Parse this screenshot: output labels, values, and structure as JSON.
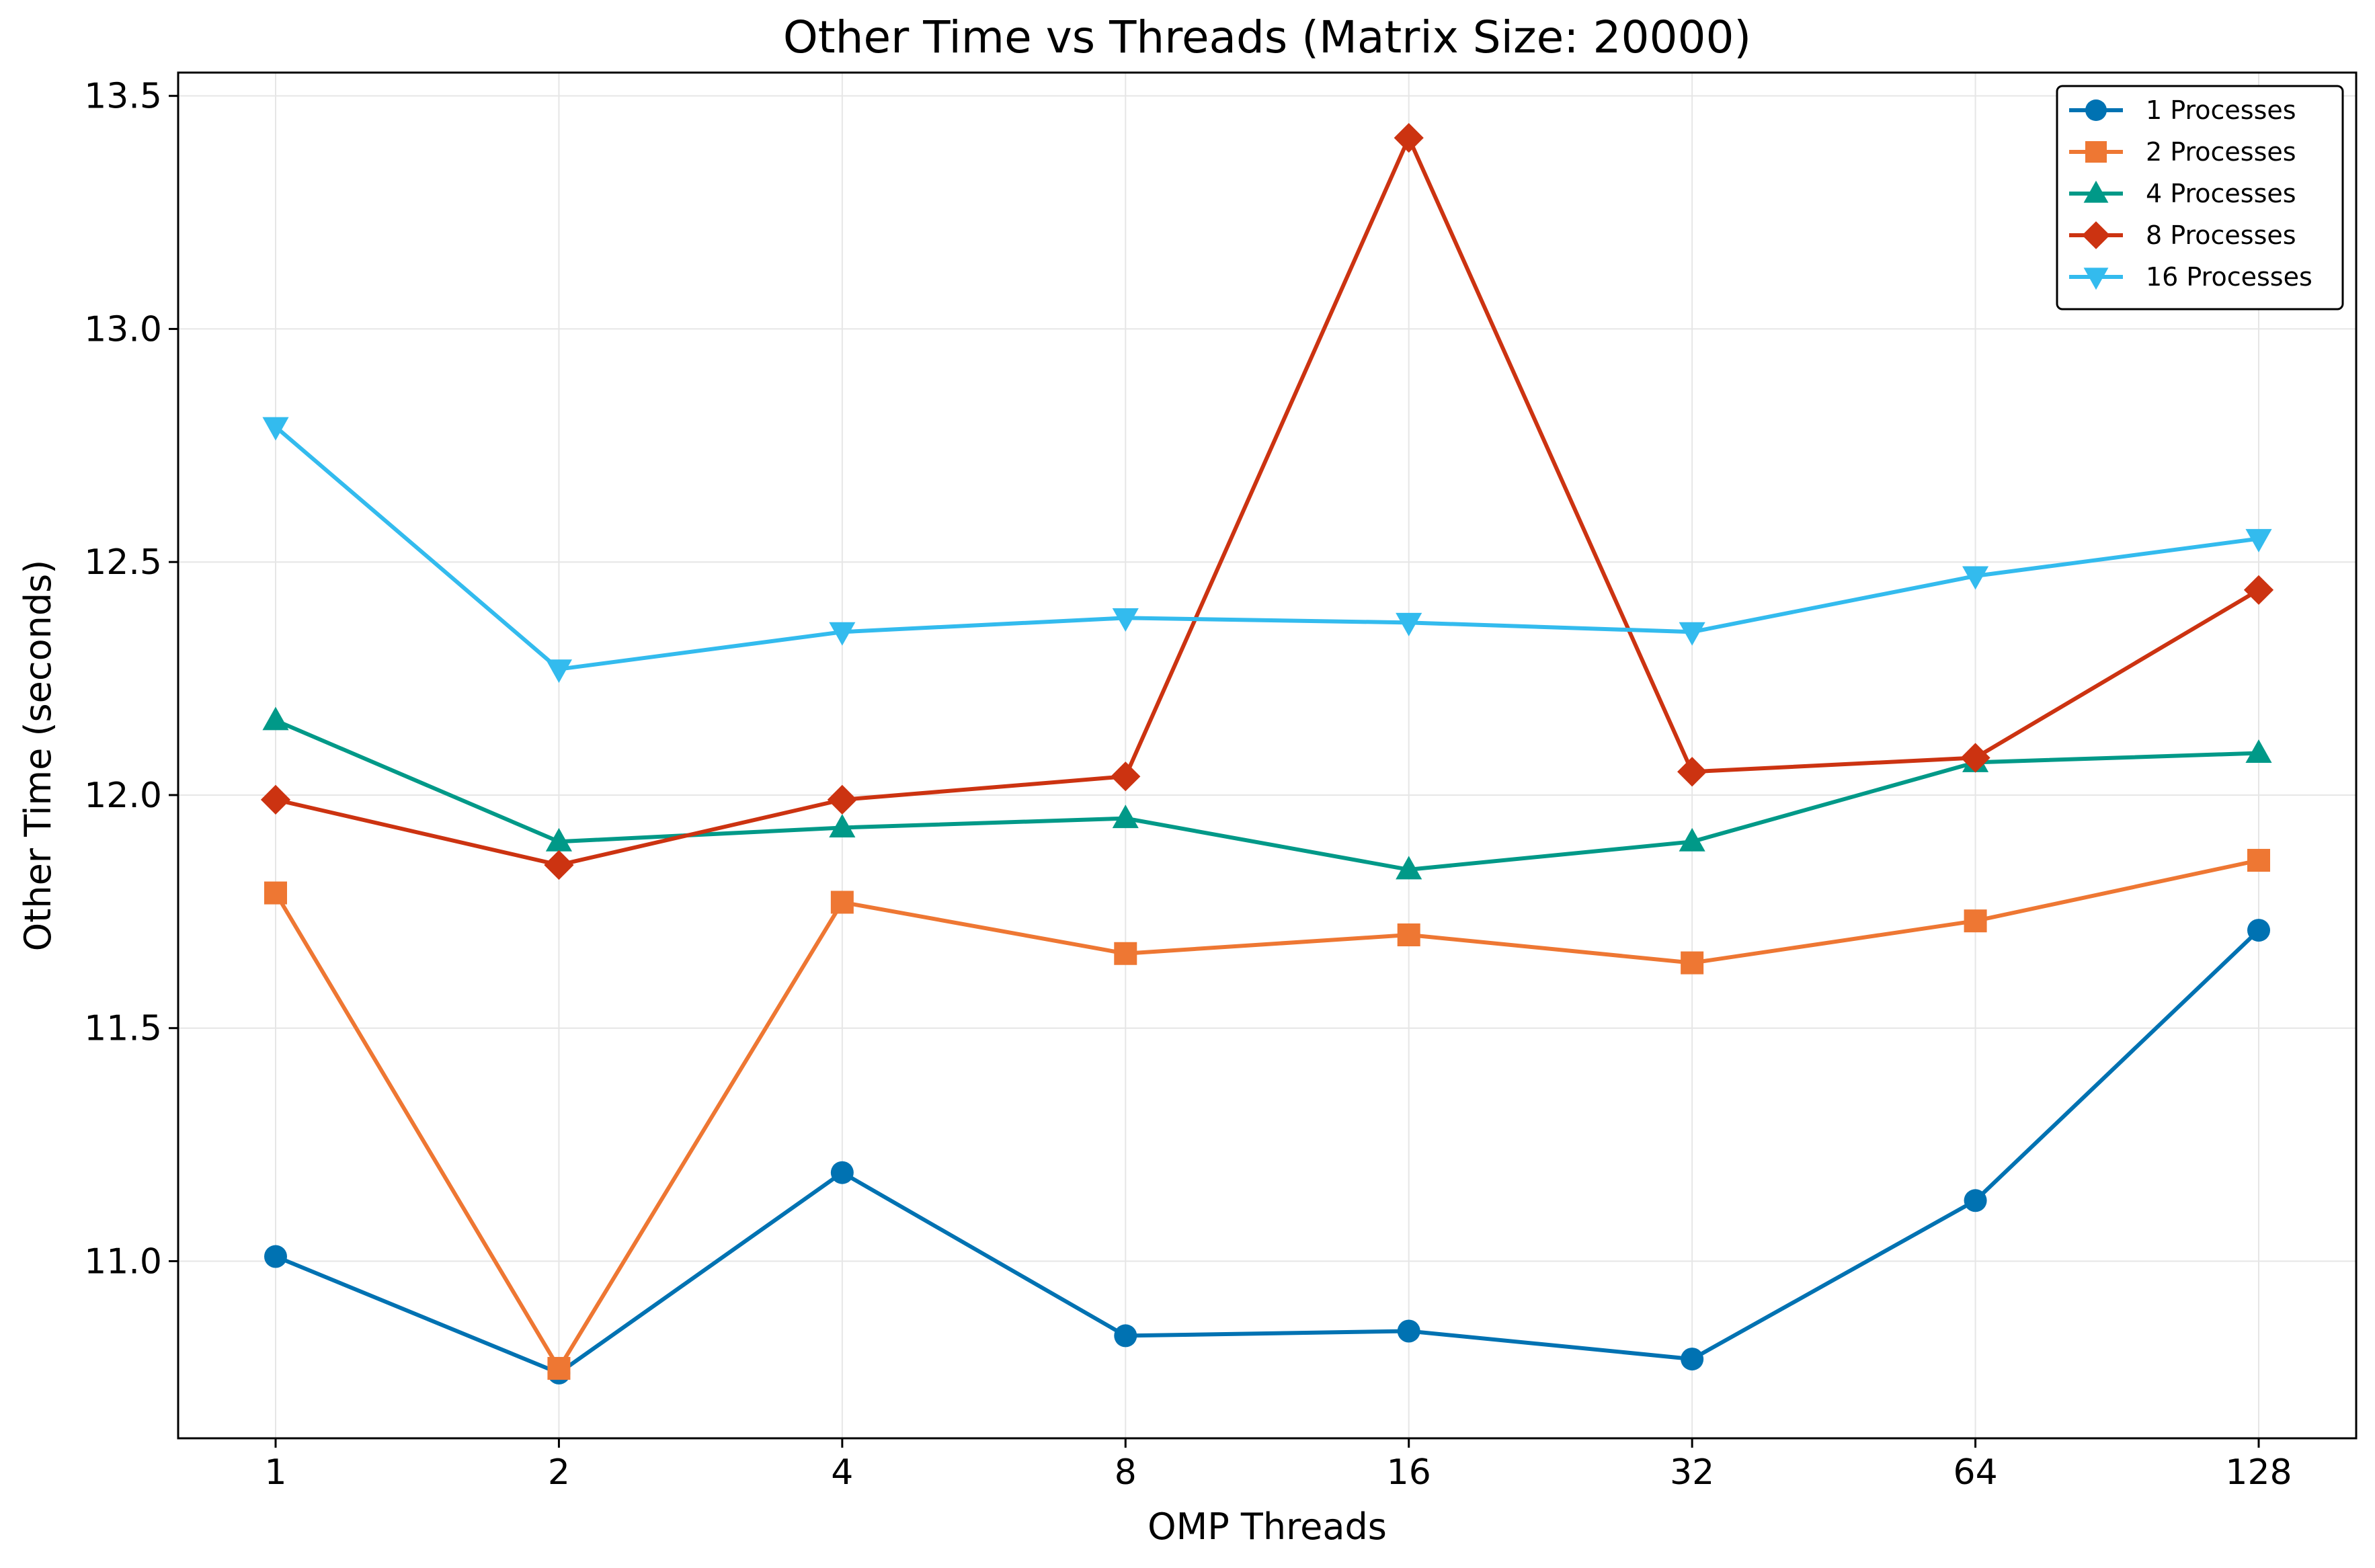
{
  "chart_data": {
    "type": "line",
    "title": "Other Time vs Threads (Matrix Size: 20000)",
    "xlabel": "OMP Threads",
    "ylabel": "Other Time (seconds)",
    "x_scale": "log2",
    "x": [
      1,
      2,
      4,
      8,
      16,
      32,
      64,
      128
    ],
    "x_tick_labels": [
      "1",
      "2",
      "4",
      "8",
      "16",
      "32",
      "64",
      "128"
    ],
    "ylim": [
      10.62,
      13.55
    ],
    "y_ticks": [
      11.0,
      11.5,
      12.0,
      12.5,
      13.0,
      13.5
    ],
    "y_tick_labels": [
      "11.0",
      "11.5",
      "12.0",
      "12.5",
      "13.0",
      "13.5"
    ],
    "grid": true,
    "legend_position": "top-right",
    "series": [
      {
        "name": "1 Processes",
        "color": "#0072B2",
        "marker": "circle",
        "values": [
          11.01,
          10.76,
          11.19,
          10.84,
          10.85,
          10.79,
          11.13,
          11.71
        ]
      },
      {
        "name": "2 Processes",
        "color": "#EE7733",
        "marker": "square",
        "values": [
          11.79,
          10.77,
          11.77,
          11.66,
          11.7,
          11.64,
          11.73,
          11.86
        ]
      },
      {
        "name": "4 Processes",
        "color": "#009988",
        "marker": "triangle-up",
        "values": [
          12.16,
          11.9,
          11.93,
          11.95,
          11.84,
          11.9,
          12.07,
          12.09
        ]
      },
      {
        "name": "8 Processes",
        "color": "#CC3311",
        "marker": "diamond",
        "values": [
          11.99,
          11.85,
          11.99,
          12.04,
          13.41,
          12.05,
          12.08,
          12.44
        ]
      },
      {
        "name": "16 Processes",
        "color": "#33BBEE",
        "marker": "triangle-down",
        "values": [
          12.79,
          12.27,
          12.35,
          12.38,
          12.37,
          12.35,
          12.47,
          12.55
        ]
      }
    ]
  }
}
